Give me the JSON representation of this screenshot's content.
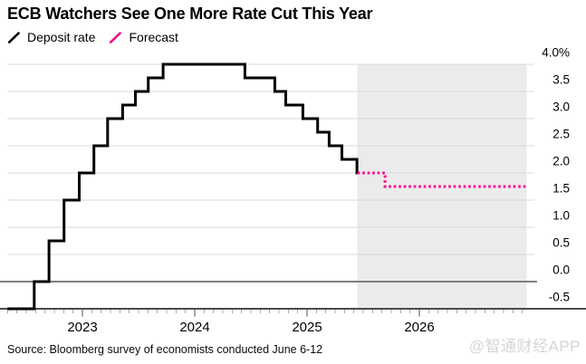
{
  "title": "ECB Watchers See One More Rate Cut This Year",
  "source": "Source: Bloomberg survey of economists conducted June 6-12",
  "watermark": "@智通财经APP",
  "chart_data": {
    "type": "line",
    "style": "step-after",
    "title": "ECB Watchers See One More Rate Cut This Year",
    "ylabel": "Deposit rate (%)",
    "ylim": [
      -0.5,
      4.0
    ],
    "yticks": [
      4.0,
      3.5,
      3.0,
      2.5,
      2.0,
      1.5,
      1.0,
      0.5,
      0.0,
      -0.5
    ],
    "ytick_labels": [
      "4.0%",
      "3.5",
      "3.0",
      "2.5",
      "2.0",
      "1.5",
      "1.0",
      "0.5",
      "0.0",
      "-0.5"
    ],
    "xtick_years": [
      "2023",
      "2024",
      "2025",
      "2026"
    ],
    "x_range": [
      "2022-05-01",
      "2027-01-01"
    ],
    "grid": true,
    "legend_position": "top-left",
    "zero_line": 0.0,
    "forecast_region": {
      "start": "2025-06-13",
      "end": "2026-12-15"
    },
    "series": [
      {
        "name": "Deposit rate",
        "color": "#000000",
        "line": "solid",
        "end": "2025-06-13",
        "points": [
          [
            "2022-05-01",
            -0.5
          ],
          [
            "2022-07-27",
            0.0
          ],
          [
            "2022-09-14",
            0.75
          ],
          [
            "2022-11-02",
            1.5
          ],
          [
            "2022-12-21",
            2.0
          ],
          [
            "2023-02-08",
            2.5
          ],
          [
            "2023-03-22",
            3.0
          ],
          [
            "2023-05-10",
            3.25
          ],
          [
            "2023-06-21",
            3.5
          ],
          [
            "2023-08-02",
            3.75
          ],
          [
            "2023-09-20",
            4.0
          ],
          [
            "2024-06-12",
            3.75
          ],
          [
            "2024-09-18",
            3.5
          ],
          [
            "2024-10-23",
            3.25
          ],
          [
            "2024-12-18",
            3.0
          ],
          [
            "2025-02-05",
            2.75
          ],
          [
            "2025-03-12",
            2.5
          ],
          [
            "2025-04-23",
            2.25
          ],
          [
            "2025-06-11",
            2.0
          ]
        ]
      },
      {
        "name": "Forecast",
        "color": "#f5078c",
        "line": "dotted",
        "end": "2026-12-15",
        "points": [
          [
            "2025-06-13",
            2.0
          ],
          [
            "2025-09-11",
            1.75
          ]
        ]
      }
    ],
    "colors": {
      "forecast_region_bg": "#ebebeb",
      "grid_line": "#d9d9d9",
      "zero_line": "#7d7d7d",
      "axis_line": "#4c4c4c",
      "tick_minor": "#ababab",
      "tick_major": "#4c4c4c",
      "tick_label": "#000000"
    }
  }
}
